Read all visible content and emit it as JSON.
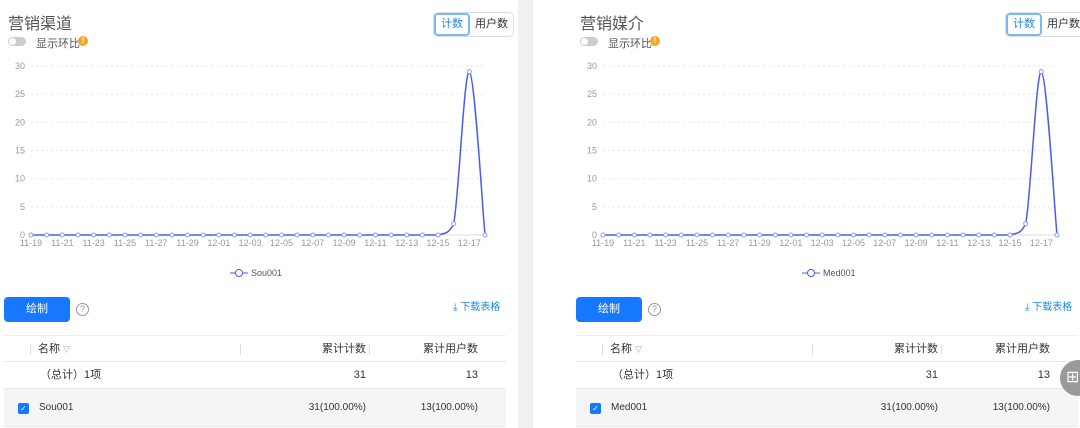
{
  "toggle_label": "显示环比",
  "segment": [
    "计数",
    "用户数"
  ],
  "draw_label": "绘制",
  "download_label": "下载表格",
  "table_headers": {
    "name": "名称",
    "count": "累计计数",
    "users": "累计用户数"
  },
  "accent": "#4a5cf0",
  "panels": [
    {
      "title": "营销渠道",
      "total": {
        "label": "（总计）1项",
        "count": "31",
        "users": "13"
      },
      "row": {
        "name": "Sou001",
        "count": "31(100.00%)",
        "users": "13(100.00%)"
      }
    },
    {
      "title": "营销媒介",
      "total": {
        "label": "（总计）1项",
        "count": "31",
        "users": "13"
      },
      "row": {
        "name": "Med001",
        "count": "31(100.00%)",
        "users": "13(100.00%)"
      }
    }
  ],
  "chart_data": [
    {
      "type": "line",
      "series": [
        {
          "name": "Sou001"
        }
      ],
      "ylim": [
        0,
        30
      ],
      "yticks": [
        0,
        5,
        10,
        15,
        20,
        25,
        30
      ],
      "grid": true,
      "legend": "bottom",
      "x": [
        "11-19",
        "11-20",
        "11-21",
        "11-22",
        "11-23",
        "11-24",
        "11-25",
        "11-26",
        "11-27",
        "11-28",
        "11-29",
        "11-30",
        "12-01",
        "12-02",
        "12-03",
        "12-04",
        "12-05",
        "12-06",
        "12-07",
        "12-08",
        "12-09",
        "12-10",
        "12-11",
        "12-12",
        "12-13",
        "12-14",
        "12-15",
        "12-16",
        "12-17",
        "12-18"
      ],
      "values": [
        0,
        0,
        0,
        0,
        0,
        0,
        0,
        0,
        0,
        0,
        0,
        0,
        0,
        0,
        0,
        0,
        0,
        0,
        0,
        0,
        0,
        0,
        0,
        0,
        0,
        0,
        0,
        2,
        29,
        0
      ]
    },
    {
      "type": "line",
      "series": [
        {
          "name": "Med001"
        }
      ],
      "ylim": [
        0,
        30
      ],
      "yticks": [
        0,
        5,
        10,
        15,
        20,
        25,
        30
      ],
      "grid": true,
      "legend": "bottom",
      "x": [
        "11-19",
        "11-20",
        "11-21",
        "11-22",
        "11-23",
        "11-24",
        "11-25",
        "11-26",
        "11-27",
        "11-28",
        "11-29",
        "11-30",
        "12-01",
        "12-02",
        "12-03",
        "12-04",
        "12-05",
        "12-06",
        "12-07",
        "12-08",
        "12-09",
        "12-10",
        "12-11",
        "12-12",
        "12-13",
        "12-14",
        "12-15",
        "12-16",
        "12-17",
        "12-18"
      ],
      "values": [
        0,
        0,
        0,
        0,
        0,
        0,
        0,
        0,
        0,
        0,
        0,
        0,
        0,
        0,
        0,
        0,
        0,
        0,
        0,
        0,
        0,
        0,
        0,
        0,
        0,
        0,
        0,
        2,
        29,
        0
      ]
    }
  ]
}
